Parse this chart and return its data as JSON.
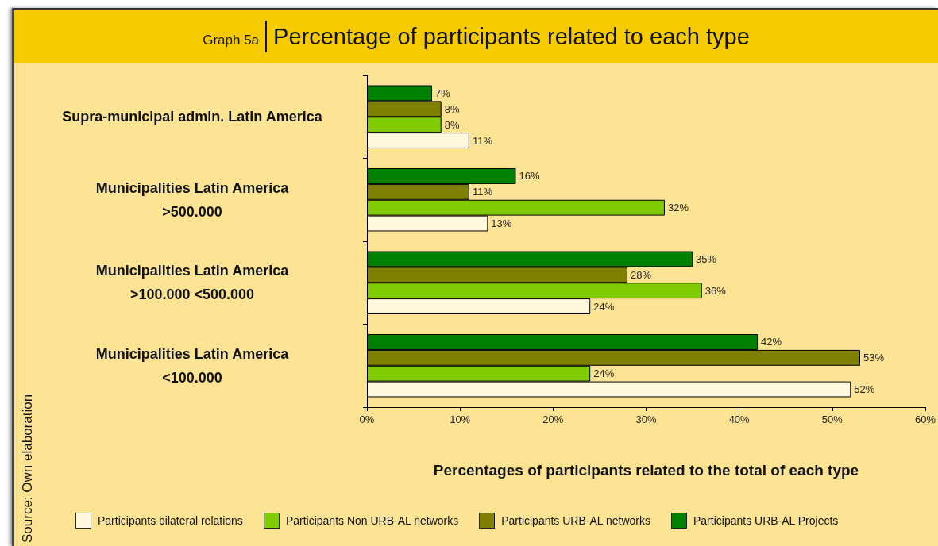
{
  "chart_data": {
    "type": "bar",
    "orientation": "horizontal",
    "title": "Percentage of participants related to each type",
    "subtitle": "Graph 5a",
    "xlabel": "Percentages of participants related to the total of each type",
    "annotations": [
      "Source: Own elaboration"
    ],
    "categories": [
      "Supra-municipal admin. Latin America",
      "Municipalities Latin America\n>500.000",
      "Municipalities Latin America\n>100.000 <500.000",
      "Municipalities Latin America\n<100.000"
    ],
    "series": [
      {
        "name": "Participants bilateral relations",
        "color": "#fff8dc",
        "values": [
          11,
          13,
          24,
          52
        ],
        "value_labels": [
          "11%",
          "13%",
          "24%",
          "52%"
        ]
      },
      {
        "name": "Participants Non URB-AL networks",
        "color": "#80cc00",
        "values": [
          8,
          32,
          36,
          24
        ],
        "value_labels": [
          "8%",
          "32%",
          "36%",
          "24%"
        ]
      },
      {
        "name": "Participants URB-AL networks",
        "color": "#808000",
        "values": [
          8,
          11,
          28,
          53
        ],
        "value_labels": [
          "8%",
          "11%",
          "28%",
          "53%"
        ]
      },
      {
        "name": "Participants URB-AL Projects",
        "color": "#008000",
        "values": [
          7,
          16,
          35,
          42
        ],
        "value_labels": [
          "7%",
          "16%",
          "35%",
          "42%"
        ]
      }
    ],
    "xlim": [
      0,
      60
    ],
    "xticks": [
      {
        "value": 0,
        "label": "0%"
      },
      {
        "value": 10,
        "label": "10%"
      },
      {
        "value": 20,
        "label": "20%"
      },
      {
        "value": 30,
        "label": "30%"
      },
      {
        "value": 40,
        "label": "40%"
      },
      {
        "value": 50,
        "label": "50%"
      },
      {
        "value": 60,
        "label": "60%"
      }
    ],
    "grid": false,
    "legend": "bottom"
  }
}
